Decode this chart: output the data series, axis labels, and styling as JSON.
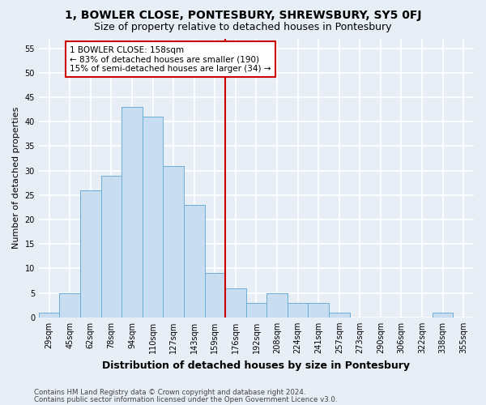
{
  "title": "1, BOWLER CLOSE, PONTESBURY, SHREWSBURY, SY5 0FJ",
  "subtitle": "Size of property relative to detached houses in Pontesbury",
  "xlabel": "Distribution of detached houses by size in Pontesbury",
  "ylabel": "Number of detached properties",
  "bin_labels": [
    "29sqm",
    "45sqm",
    "62sqm",
    "78sqm",
    "94sqm",
    "110sqm",
    "127sqm",
    "143sqm",
    "159sqm",
    "176sqm",
    "192sqm",
    "208sqm",
    "224sqm",
    "241sqm",
    "257sqm",
    "273sqm",
    "290sqm",
    "306sqm",
    "322sqm",
    "338sqm",
    "355sqm"
  ],
  "bar_values": [
    1,
    5,
    26,
    29,
    43,
    41,
    31,
    23,
    9,
    6,
    3,
    5,
    3,
    3,
    1,
    0,
    0,
    0,
    0,
    1,
    0
  ],
  "bar_color": "#c9ddf0",
  "bar_edge_color": "#6aaed6",
  "property_line_x": 8.5,
  "annotation_text": "1 BOWLER CLOSE: 158sqm\n← 83% of detached houses are smaller (190)\n15% of semi-detached houses are larger (34) →",
  "annotation_box_color": "#ffffff",
  "annotation_box_edge_color": "#cc0000",
  "line_color": "#cc0000",
  "ylim": [
    0,
    57
  ],
  "yticks": [
    0,
    5,
    10,
    15,
    20,
    25,
    30,
    35,
    40,
    45,
    50,
    55
  ],
  "background_color": "#e8eef6",
  "grid_color": "#ffffff",
  "title_fontsize": 10,
  "subtitle_fontsize": 9,
  "ylabel_fontsize": 8,
  "xlabel_fontsize": 9,
  "tick_fontsize": 7,
  "footer_line1": "Contains HM Land Registry data © Crown copyright and database right 2024.",
  "footer_line2": "Contains public sector information licensed under the Open Government Licence v3.0."
}
